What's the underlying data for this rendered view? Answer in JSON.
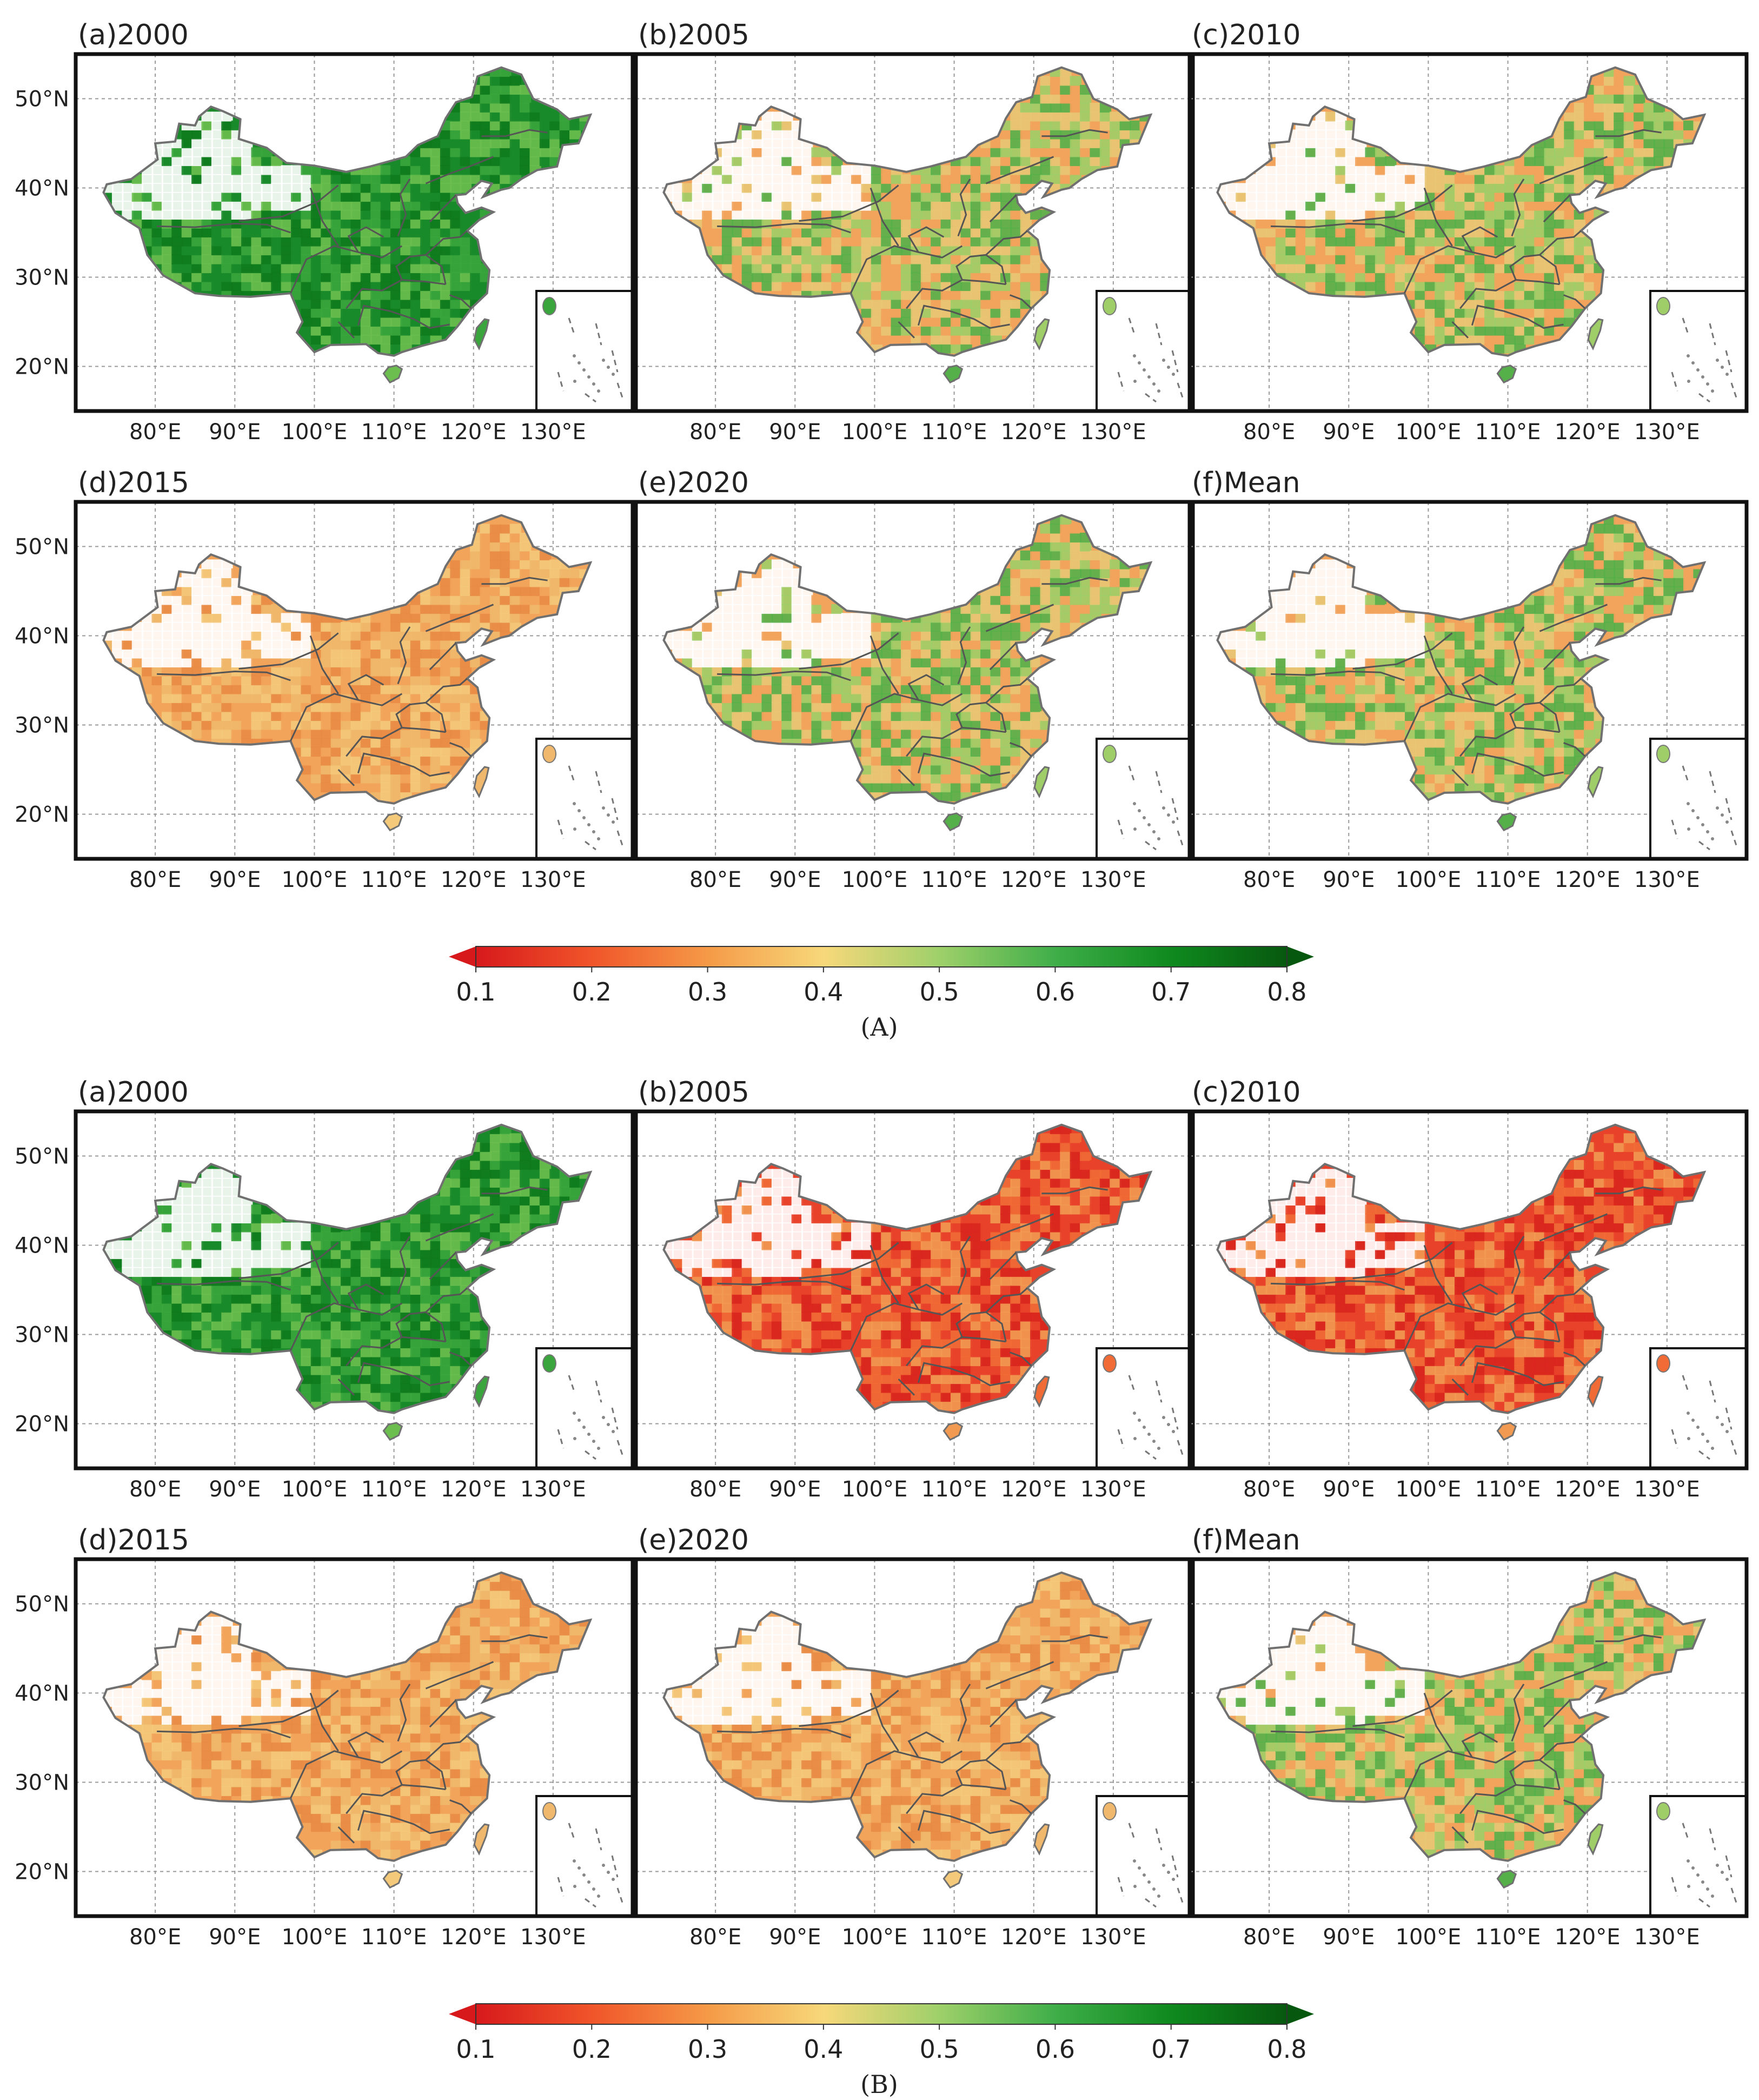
{
  "figure_parts": [
    {
      "part_label": "(A)",
      "panels": [
        {
          "label": "(a)2000",
          "scheme": "green"
        },
        {
          "label": "(b)2005",
          "scheme": "mixed"
        },
        {
          "label": "(c)2010",
          "scheme": "mixed"
        },
        {
          "label": "(d)2015",
          "scheme": "orange"
        },
        {
          "label": "(e)2020",
          "scheme": "mixed"
        },
        {
          "label": "(f)Mean",
          "scheme": "mixed"
        }
      ]
    },
    {
      "part_label": "(B)",
      "panels": [
        {
          "label": "(a)2000",
          "scheme": "green"
        },
        {
          "label": "(b)2005",
          "scheme": "red"
        },
        {
          "label": "(c)2010",
          "scheme": "red"
        },
        {
          "label": "(d)2015",
          "scheme": "orange"
        },
        {
          "label": "(e)2020",
          "scheme": "orange"
        },
        {
          "label": "(f)Mean",
          "scheme": "mixed"
        }
      ]
    }
  ],
  "axes": {
    "lat_ticks": [
      "20°N",
      "30°N",
      "40°N",
      "50°N"
    ],
    "lon_ticks": [
      "80°E",
      "90°E",
      "100°E",
      "110°E",
      "120°E",
      "130°E"
    ],
    "lat_values": [
      20,
      30,
      40,
      50
    ],
    "lon_values": [
      80,
      90,
      100,
      110,
      120,
      130
    ],
    "lat_range": [
      15,
      55
    ],
    "lon_range": [
      70,
      140
    ]
  },
  "colorbar": {
    "ticks": [
      "0.1",
      "0.2",
      "0.3",
      "0.4",
      "0.5",
      "0.6",
      "0.7",
      "0.8"
    ],
    "stops": [
      {
        "value": 0.1,
        "color": "#d7191c"
      },
      {
        "value": 0.2,
        "color": "#f0552a"
      },
      {
        "value": 0.3,
        "color": "#f59a47"
      },
      {
        "value": 0.4,
        "color": "#f7d87a"
      },
      {
        "value": 0.5,
        "color": "#9fd06a"
      },
      {
        "value": 0.6,
        "color": "#3fae49"
      },
      {
        "value": 0.7,
        "color": "#0f8a1e"
      },
      {
        "value": 0.8,
        "color": "#07580f"
      }
    ]
  },
  "palette": {
    "green": [
      "#1a8a2a",
      "#3aa53c",
      "#6cbf4f",
      "#0e7a1c"
    ],
    "mixed": [
      "#f2a35c",
      "#9fce68",
      "#55b04a",
      "#e8c673"
    ],
    "orange": [
      "#f2a45a",
      "#efb86c",
      "#f4c97a",
      "#e88b45"
    ],
    "red": [
      "#e8432a",
      "#f06b35",
      "#f29a52",
      "#d9261e"
    ]
  }
}
